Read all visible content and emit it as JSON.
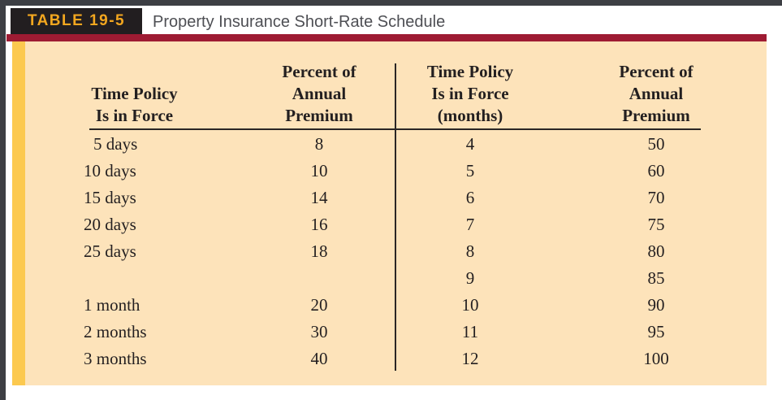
{
  "header": {
    "table_label": "TABLE 19-5",
    "title": "Property Insurance Short-Rate Schedule"
  },
  "table": {
    "left_headers": {
      "col1": [
        "Time Policy",
        "Is in Force"
      ],
      "col2": [
        "Percent of",
        "Annual",
        "Premium"
      ]
    },
    "right_headers": {
      "col1": [
        "Time Policy",
        "Is in Force",
        "(months)"
      ],
      "col2": [
        "Percent of",
        "Annual",
        "Premium"
      ]
    },
    "rows": [
      {
        "c1": "5 days",
        "c2": "8",
        "c3": "4",
        "c4": "50"
      },
      {
        "c1": "10 days",
        "c2": "10",
        "c3": "5",
        "c4": "60"
      },
      {
        "c1": "15 days",
        "c2": "14",
        "c3": "6",
        "c4": "70"
      },
      {
        "c1": "20 days",
        "c2": "16",
        "c3": "7",
        "c4": "75"
      },
      {
        "c1": "25 days",
        "c2": "18",
        "c3": "8",
        "c4": "80"
      },
      {
        "c1": "",
        "c2": "",
        "c3": "9",
        "c4": "85"
      },
      {
        "c1": "1 month",
        "c2": "20",
        "c3": "10",
        "c4": "90"
      },
      {
        "c1": "2 months",
        "c2": "30",
        "c3": "11",
        "c4": "95"
      },
      {
        "c1": "3 months",
        "c2": "40",
        "c3": "12",
        "c4": "100"
      }
    ]
  },
  "colors": {
    "window_frame": "#3d3f44",
    "label_box_bg": "#221e20",
    "label_text": "#f3a71f",
    "red_rule": "#9e1b33",
    "panel_bg": "#fde3ba",
    "gold_stripe": "#fcc94f",
    "table_text": "#231f20",
    "title_text": "#4e4f54"
  }
}
